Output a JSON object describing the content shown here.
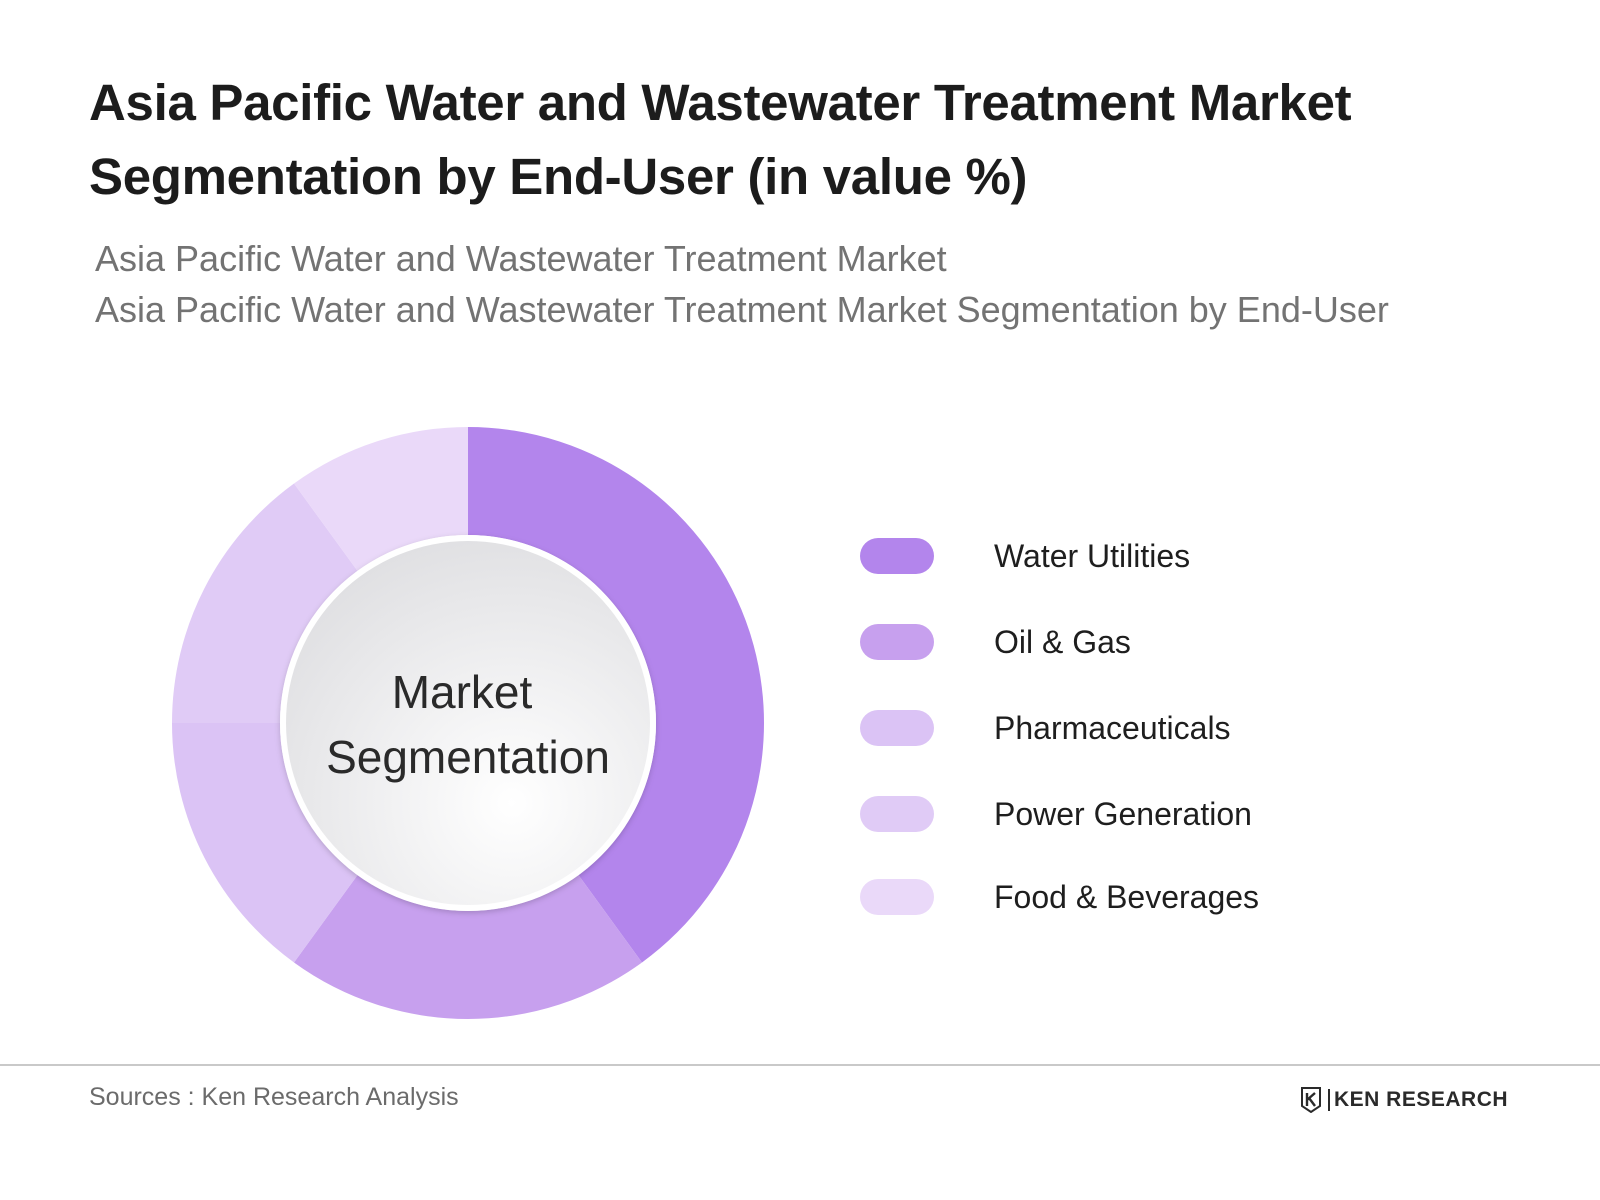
{
  "title": "Asia Pacific Water and Wastewater Treatment Market Segmentation by End-User (in value %)",
  "subtitle_lines": [
    "Asia Pacific Water and Wastewater Treatment Market",
    "Asia Pacific Water and Wastewater Treatment Market Segmentation by End-User"
  ],
  "center_label": [
    "Market",
    "Segmentation"
  ],
  "source": "Sources : Ken Research Analysis",
  "logo": {
    "text": "KEN RESEARCH",
    "mark": "K"
  },
  "chart_data": {
    "type": "pie",
    "variant": "donut",
    "categories": [
      "Water Utilities",
      "Oil & Gas",
      "Pharmaceuticals",
      "Power Generation",
      "Food & Beverages"
    ],
    "values": [
      40,
      20,
      15,
      15,
      10
    ],
    "colors": [
      "#b385ec",
      "#c7a0ee",
      "#dbc3f5",
      "#e0cbf6",
      "#ead9f9"
    ],
    "legend_position": "right"
  }
}
